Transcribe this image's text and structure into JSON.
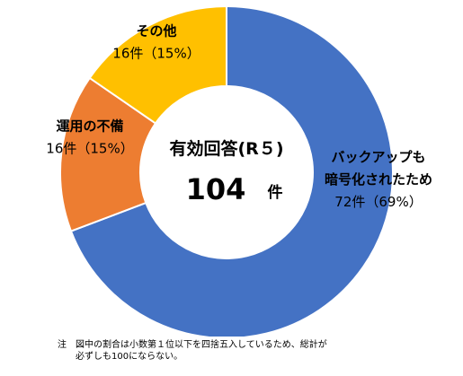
{
  "chart_data": {
    "type": "pie",
    "style": "donut",
    "start": "top",
    "direction": "clockwise",
    "center_label": "有効回答(R５)",
    "center_value": "104",
    "center_unit": "件",
    "slices": [
      {
        "name_lines": [
          "バックアップも",
          "暗号化されたため"
        ],
        "count_label": "72件",
        "percent_label": "（69%）",
        "value": 72,
        "percent": 69,
        "color": "#4472C4"
      },
      {
        "name_lines": [
          "運用の不備"
        ],
        "count_label": "16件",
        "percent_label": "（15%）",
        "value": 16,
        "percent": 15,
        "color": "#ED7D31"
      },
      {
        "name_lines": [
          "その他"
        ],
        "count_label": "16件",
        "percent_label": "（15%）",
        "value": 16,
        "percent": 15,
        "color": "#FFC000"
      }
    ]
  },
  "note": {
    "line1": "注　図中の割合は小数第１位以下を四捨五入しているため、総計が",
    "line2": "必ずしも100にならない。"
  }
}
